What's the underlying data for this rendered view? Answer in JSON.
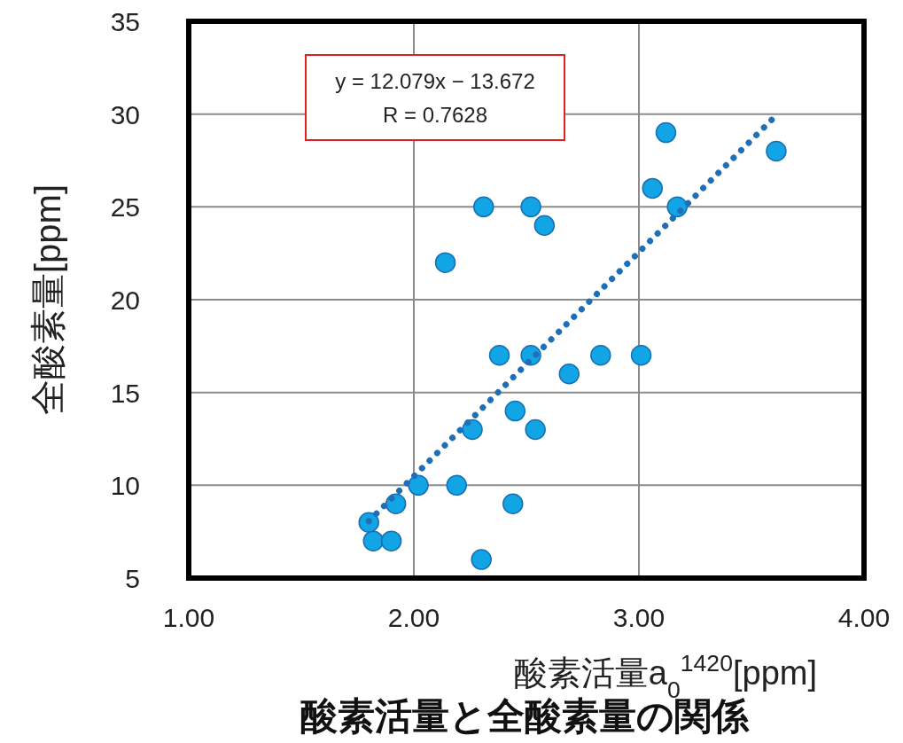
{
  "chart_data": {
    "type": "scatter",
    "title": "酸素活量と全酸素量の関係",
    "xlabel": "酸素活量a$_{0}$$^{1420}$[ppm]",
    "ylabel": "全酸素量[ppm]",
    "annotations": [
      "y = 12.079x − 13.672",
      "R = 0.7628"
    ],
    "xlim": [
      1,
      4
    ],
    "xticks": [
      {
        "value": 1,
        "label": "1.00"
      },
      {
        "value": 2,
        "label": "2.00"
      },
      {
        "value": 3,
        "label": "3.00"
      },
      {
        "value": 4,
        "label": "4.00"
      }
    ],
    "ylim": [
      5,
      35
    ],
    "yticks": [
      5,
      10,
      15,
      20,
      25,
      30,
      35
    ],
    "grid": true,
    "series": [
      {
        "marker": "circle",
        "color": "#12a5e6",
        "x": [
          1.8,
          1.82,
          1.9,
          1.92,
          2.02,
          2.19,
          2.14,
          2.3,
          2.31,
          2.26,
          2.38,
          2.45,
          2.44,
          2.52,
          2.52,
          2.54,
          2.58,
          2.69,
          2.83,
          3.01,
          3.06,
          3.12,
          3.17,
          3.61
        ],
        "values": [
          8,
          7,
          7,
          9,
          10,
          10,
          22,
          6,
          25,
          13,
          17,
          14,
          9,
          25,
          17,
          13,
          24,
          16,
          17,
          17,
          26,
          29,
          25,
          28
        ]
      },
      {
        "type": "line",
        "line_style": "dotted",
        "color": "#1e6fb8",
        "x": [
          1.8,
          3.6
        ],
        "values": [
          8.07,
          29.81
        ]
      }
    ]
  }
}
